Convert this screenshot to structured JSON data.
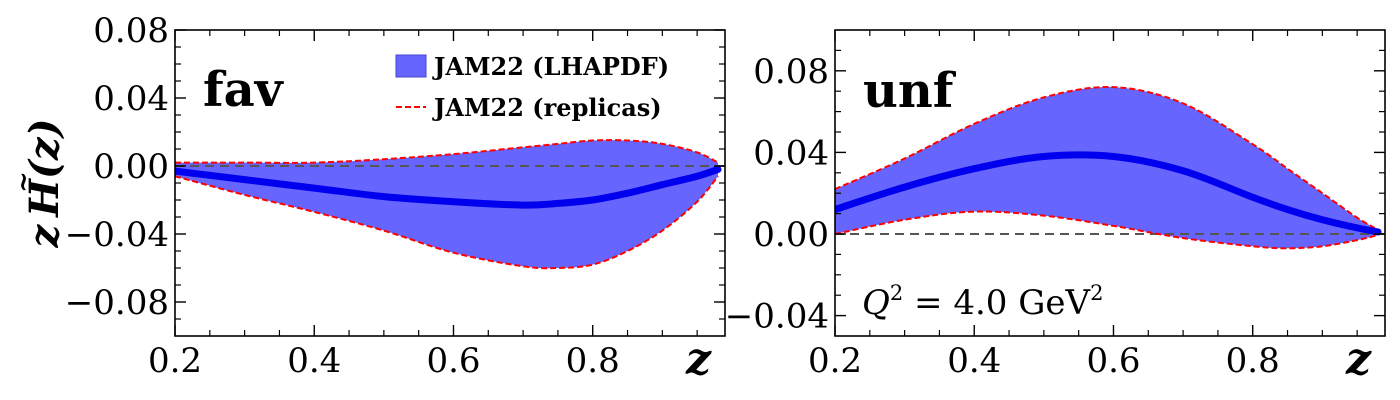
{
  "chart_data": [
    {
      "type": "area",
      "panel_label": "fav",
      "xlabel": "z",
      "ylabel_parts": [
        "z",
        "H",
        "(z)"
      ],
      "xlim": [
        0.2,
        0.99
      ],
      "ylim": [
        -0.1,
        0.08
      ],
      "xticks": [
        0.2,
        0.4,
        0.6,
        0.8
      ],
      "xtick_labels": [
        "0.2",
        "0.4",
        "0.6",
        "0.8"
      ],
      "yticks": [
        0.08,
        0.04,
        0.0,
        -0.04,
        -0.08
      ],
      "ytick_labels": [
        "0.08",
        "0.04",
        "0.00",
        "−0.04",
        "−0.08"
      ],
      "reference_line_y": 0.0,
      "legend": {
        "location": "top-right",
        "entries": [
          "JAM22 (LHAPDF)",
          "JAM22 (replicas)"
        ]
      },
      "x": [
        0.2,
        0.3,
        0.4,
        0.5,
        0.6,
        0.7,
        0.75,
        0.8,
        0.85,
        0.9,
        0.95,
        0.98
      ],
      "series": [
        {
          "name": "JAM22 (LHAPDF)",
          "role": "band_upper",
          "values": [
            0.002,
            0.002,
            0.002,
            0.004,
            0.007,
            0.011,
            0.013,
            0.015,
            0.015,
            0.013,
            0.008,
            0.002
          ]
        },
        {
          "name": "JAM22 (LHAPDF)",
          "role": "band_lower",
          "values": [
            -0.006,
            -0.017,
            -0.027,
            -0.038,
            -0.051,
            -0.059,
            -0.06,
            -0.058,
            -0.05,
            -0.038,
            -0.021,
            -0.006
          ]
        },
        {
          "role": "central",
          "values": [
            -0.003,
            -0.008,
            -0.013,
            -0.018,
            -0.021,
            -0.023,
            -0.022,
            -0.02,
            -0.016,
            -0.011,
            -0.006,
            -0.002
          ]
        }
      ]
    },
    {
      "type": "area",
      "panel_label": "unf",
      "xlabel": "z",
      "xlim": [
        0.2,
        0.99
      ],
      "ylim": [
        -0.05,
        0.1
      ],
      "xticks": [
        0.2,
        0.4,
        0.6,
        0.8
      ],
      "xtick_labels": [
        "0.2",
        "0.4",
        "0.6",
        "0.8"
      ],
      "yticks": [
        0.08,
        0.04,
        0.0,
        -0.04
      ],
      "ytick_labels": [
        "0.08",
        "0.04",
        "0.00",
        "−0.04"
      ],
      "reference_line_y": 0.0,
      "annotation": {
        "base": "Q",
        "sup": "2",
        "mid": " = 4.0 GeV",
        "sup2": "2"
      },
      "x": [
        0.2,
        0.3,
        0.4,
        0.5,
        0.6,
        0.7,
        0.8,
        0.85,
        0.9,
        0.95,
        0.98
      ],
      "series": [
        {
          "name": "JAM22 (LHAPDF)",
          "role": "band_upper",
          "values": [
            0.022,
            0.037,
            0.054,
            0.067,
            0.072,
            0.064,
            0.044,
            0.032,
            0.02,
            0.008,
            0.002
          ]
        },
        {
          "name": "JAM22 (LHAPDF)",
          "role": "band_lower",
          "values": [
            0.0,
            0.007,
            0.011,
            0.009,
            0.004,
            -0.002,
            -0.006,
            -0.007,
            -0.006,
            -0.003,
            -0.0005
          ]
        },
        {
          "role": "central",
          "values": [
            0.012,
            0.023,
            0.032,
            0.038,
            0.038,
            0.031,
            0.018,
            0.012,
            0.007,
            0.003,
            0.001
          ]
        }
      ]
    }
  ],
  "colors": {
    "band": "#6666ff",
    "central": "#0000ee",
    "replica": "#ff0000",
    "reference": "#555555"
  }
}
